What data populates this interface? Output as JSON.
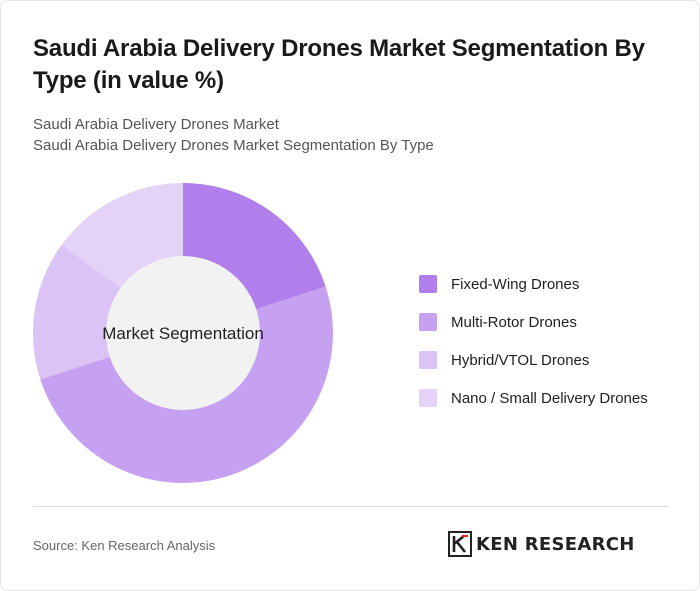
{
  "title": "Saudi Arabia Delivery Drones Market Segmentation By Type (in value %)",
  "subtitle": {
    "line1": "Saudi Arabia Delivery Drones Market",
    "line2": "Saudi Arabia Delivery Drones Market Segmentation By Type"
  },
  "chart_data": {
    "type": "pie",
    "donut": true,
    "center_label": "Market Segmentation",
    "legend_position": "right",
    "categories": [
      "Fixed-Wing Drones",
      "Multi-Rotor Drones",
      "Hybrid/VTOL Drones",
      "Nano / Small Delivery Drones"
    ],
    "values": [
      20,
      50,
      15,
      15
    ],
    "colors": [
      "#b07feb",
      "#c7a1f1",
      "#dbc3f5",
      "#e5d3f7"
    ]
  },
  "center_fill": "#f2f2f2",
  "footer": {
    "source": "Source: Ken Research Analysis",
    "logo_text": "KEN RESEARCH"
  }
}
